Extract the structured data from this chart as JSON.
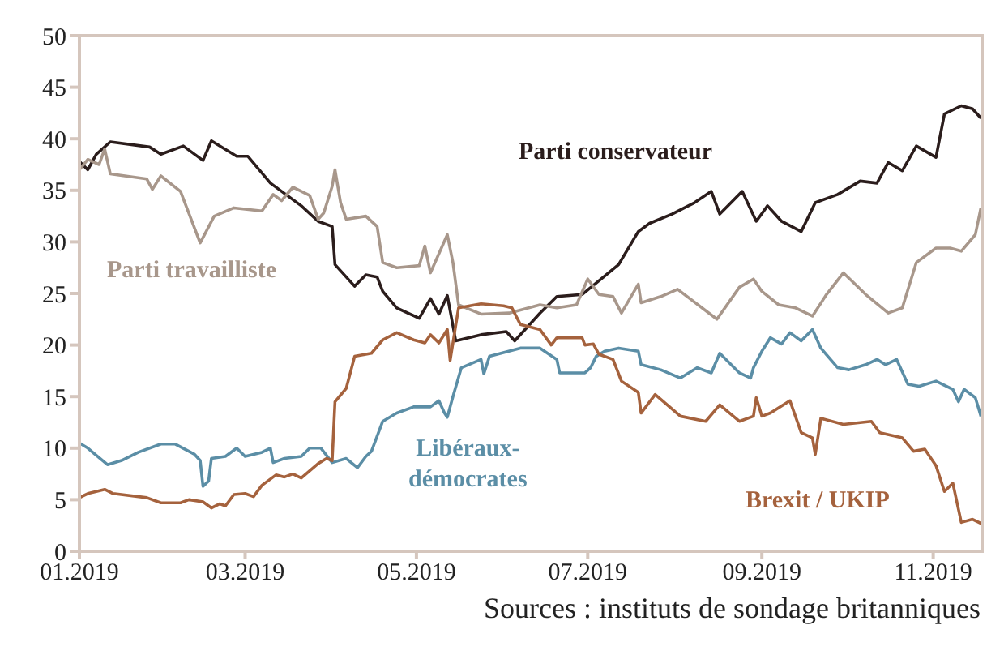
{
  "chart_data": {
    "type": "line",
    "annotations": [
      "Sources : instituts de sondage britanniques"
    ],
    "xlim": [
      "2019-01-01",
      "2019-11-19"
    ],
    "xticks": [
      {
        "value": "2019-01-01",
        "label": "01.2019"
      },
      {
        "value": "2019-03-01",
        "label": "03.2019"
      },
      {
        "value": "2019-05-01",
        "label": "05.2019"
      },
      {
        "value": "2019-07-01",
        "label": "07.2019"
      },
      {
        "value": "2019-09-01",
        "label": "09.2019"
      },
      {
        "value": "2019-11-01",
        "label": "11.2019"
      }
    ],
    "ylim": [
      0,
      50
    ],
    "yticks": [
      0,
      5,
      10,
      15,
      20,
      25,
      30,
      35,
      40,
      45,
      50
    ],
    "grid": false,
    "legend": false,
    "marker": "none",
    "line_style": "solid",
    "series": [
      {
        "name": "Parti conservateur",
        "color": "#2b1d1c",
        "x": [
          "2019-01-01",
          "2019-01-04",
          "2019-01-07",
          "2019-01-12",
          "2019-01-26",
          "2019-01-30",
          "2019-02-07",
          "2019-02-14",
          "2019-02-17",
          "2019-02-26",
          "2019-03-02",
          "2019-03-10",
          "2019-03-21",
          "2019-03-27",
          "2019-04-01",
          "2019-04-02",
          "2019-04-09",
          "2019-04-13",
          "2019-04-17",
          "2019-04-19",
          "2019-04-24",
          "2019-05-02",
          "2019-05-06",
          "2019-05-09",
          "2019-05-12",
          "2019-05-15",
          "2019-05-24",
          "2019-06-02",
          "2019-06-05",
          "2019-06-14",
          "2019-06-20",
          "2019-06-29",
          "2019-07-12",
          "2019-07-19",
          "2019-07-23",
          "2019-07-31",
          "2019-08-08",
          "2019-08-14",
          "2019-08-17",
          "2019-08-25",
          "2019-08-30",
          "2019-09-03",
          "2019-09-08",
          "2019-09-15",
          "2019-09-20",
          "2019-09-28",
          "2019-10-06",
          "2019-10-12",
          "2019-10-16",
          "2019-10-21",
          "2019-10-26",
          "2019-11-02",
          "2019-11-05",
          "2019-11-11",
          "2019-11-15",
          "2019-11-18"
        ],
        "values": [
          37.8,
          37,
          38.5,
          39.7,
          39.2,
          38.5,
          39.3,
          37.9,
          39.8,
          38.3,
          38.3,
          35.7,
          33.5,
          32,
          31.5,
          27.8,
          25.7,
          26.8,
          26.6,
          25.2,
          23.6,
          22.6,
          24.5,
          23,
          24.8,
          20.4,
          21,
          21.3,
          20.4,
          23.1,
          24.7,
          24.9,
          27.8,
          31,
          31.8,
          32.7,
          33.8,
          34.9,
          32.7,
          34.9,
          32,
          33.5,
          32,
          31,
          33.8,
          34.6,
          35.9,
          35.7,
          37.7,
          36.9,
          39.3,
          38.2,
          42.4,
          43.2,
          42.9,
          42
        ]
      },
      {
        "name": "Parti travailliste",
        "color": "#a8978b",
        "x": [
          "2019-01-01",
          "2019-01-04",
          "2019-01-08",
          "2019-01-10",
          "2019-01-12",
          "2019-01-25",
          "2019-01-27",
          "2019-01-30",
          "2019-02-06",
          "2019-02-13",
          "2019-02-18",
          "2019-02-25",
          "2019-03-07",
          "2019-03-11",
          "2019-03-14",
          "2019-03-18",
          "2019-03-24",
          "2019-03-27",
          "2019-03-29",
          "2019-04-01",
          "2019-04-02",
          "2019-04-04",
          "2019-04-06",
          "2019-04-13",
          "2019-04-17",
          "2019-04-19",
          "2019-04-24",
          "2019-05-02",
          "2019-05-04",
          "2019-05-06",
          "2019-05-12",
          "2019-05-14",
          "2019-05-16",
          "2019-05-24",
          "2019-06-03",
          "2019-06-14",
          "2019-06-20",
          "2019-06-27",
          "2019-07-01",
          "2019-07-05",
          "2019-07-10",
          "2019-07-13",
          "2019-07-19",
          "2019-07-20",
          "2019-07-27",
          "2019-08-02",
          "2019-08-16",
          "2019-08-24",
          "2019-08-29",
          "2019-09-01",
          "2019-09-07",
          "2019-09-13",
          "2019-09-19",
          "2019-09-24",
          "2019-09-30",
          "2019-10-08",
          "2019-10-16",
          "2019-10-21",
          "2019-10-26",
          "2019-11-02",
          "2019-11-07",
          "2019-11-11",
          "2019-11-16",
          "2019-11-18"
        ],
        "values": [
          37,
          38,
          37.5,
          39,
          36.6,
          36.1,
          35.1,
          36.4,
          34.9,
          29.9,
          32.5,
          33.3,
          33,
          34.6,
          34,
          35.3,
          34.5,
          32.2,
          32.8,
          35.4,
          37,
          33.8,
          32.2,
          32.5,
          31.5,
          28,
          27.5,
          27.7,
          29.6,
          27,
          30.7,
          28,
          23.9,
          23,
          23.1,
          23.9,
          23.6,
          23.9,
          26.4,
          24.9,
          24.7,
          23.1,
          25.9,
          24.1,
          24.7,
          25.4,
          22.5,
          25.6,
          26.4,
          25.2,
          23.9,
          23.6,
          22.8,
          24.9,
          27,
          24.9,
          23.1,
          23.6,
          28,
          29.4,
          29.4,
          29.1,
          30.7,
          33.3
        ]
      },
      {
        "name": "Libéraux-démocrates",
        "color": "#5b8ea6",
        "x": [
          "2019-01-01",
          "2019-01-04",
          "2019-01-07",
          "2019-01-11",
          "2019-01-16",
          "2019-01-22",
          "2019-01-30",
          "2019-02-04",
          "2019-02-11",
          "2019-02-13",
          "2019-02-14",
          "2019-02-16",
          "2019-02-17",
          "2019-02-22",
          "2019-02-26",
          "2019-03-01",
          "2019-03-07",
          "2019-03-10",
          "2019-03-11",
          "2019-03-15",
          "2019-03-21",
          "2019-03-24",
          "2019-03-28",
          "2019-04-01",
          "2019-04-06",
          "2019-04-10",
          "2019-04-13",
          "2019-04-15",
          "2019-04-19",
          "2019-04-24",
          "2019-04-30",
          "2019-05-06",
          "2019-05-09",
          "2019-05-11",
          "2019-05-12",
          "2019-05-14",
          "2019-05-17",
          "2019-05-24",
          "2019-05-25",
          "2019-05-27",
          "2019-06-07",
          "2019-06-14",
          "2019-06-20",
          "2019-06-21",
          "2019-06-30",
          "2019-07-02",
          "2019-07-04",
          "2019-07-07",
          "2019-07-12",
          "2019-07-19",
          "2019-07-20",
          "2019-07-27",
          "2019-08-03",
          "2019-08-09",
          "2019-08-14",
          "2019-08-17",
          "2019-08-24",
          "2019-08-28",
          "2019-08-29",
          "2019-09-01",
          "2019-09-04",
          "2019-09-08",
          "2019-09-11",
          "2019-09-15",
          "2019-09-19",
          "2019-09-22",
          "2019-09-28",
          "2019-10-02",
          "2019-10-08",
          "2019-10-12",
          "2019-10-15",
          "2019-10-19",
          "2019-10-23",
          "2019-10-27",
          "2019-11-02",
          "2019-11-08",
          "2019-11-10",
          "2019-11-12",
          "2019-11-16",
          "2019-11-18"
        ],
        "values": [
          10.5,
          10,
          9.3,
          8.4,
          8.8,
          9.6,
          10.4,
          10.4,
          9.4,
          8.8,
          6.3,
          6.8,
          9,
          9.2,
          10,
          9.2,
          9.6,
          10,
          8.6,
          9,
          9.2,
          10,
          10,
          8.6,
          9,
          8.1,
          9.2,
          9.7,
          12.6,
          13.4,
          14,
          14,
          14.6,
          13.4,
          13,
          15,
          17.8,
          18.6,
          17.2,
          18.9,
          19.7,
          19.7,
          18.6,
          17.3,
          17.3,
          17.8,
          18.9,
          19.4,
          19.7,
          19.4,
          18.1,
          17.6,
          16.8,
          17.8,
          17.3,
          19.2,
          17.3,
          16.8,
          17.8,
          19.4,
          20.7,
          20.1,
          21.2,
          20.4,
          21.5,
          19.7,
          17.8,
          17.6,
          18.1,
          18.6,
          18.1,
          18.6,
          16.2,
          16,
          16.5,
          15.7,
          14.5,
          15.7,
          14.9,
          13.1
        ]
      },
      {
        "name": "Brexit / UKIP",
        "color": "#a5623d",
        "x": [
          "2019-01-01",
          "2019-01-04",
          "2019-01-10",
          "2019-01-13",
          "2019-01-25",
          "2019-01-30",
          "2019-02-06",
          "2019-02-09",
          "2019-02-14",
          "2019-02-17",
          "2019-02-20",
          "2019-02-22",
          "2019-02-25",
          "2019-03-01",
          "2019-03-04",
          "2019-03-07",
          "2019-03-12",
          "2019-03-15",
          "2019-03-18",
          "2019-03-21",
          "2019-03-27",
          "2019-03-30",
          "2019-04-01",
          "2019-04-02",
          "2019-04-06",
          "2019-04-09",
          "2019-04-15",
          "2019-04-19",
          "2019-04-24",
          "2019-04-30",
          "2019-05-04",
          "2019-05-06",
          "2019-05-09",
          "2019-05-12",
          "2019-05-13",
          "2019-05-16",
          "2019-05-24",
          "2019-06-01",
          "2019-06-04",
          "2019-06-07",
          "2019-06-14",
          "2019-06-18",
          "2019-06-20",
          "2019-06-29",
          "2019-06-30",
          "2019-07-03",
          "2019-07-05",
          "2019-07-10",
          "2019-07-13",
          "2019-07-19",
          "2019-07-20",
          "2019-07-25",
          "2019-08-03",
          "2019-08-12",
          "2019-08-17",
          "2019-08-24",
          "2019-08-29",
          "2019-08-30",
          "2019-09-01",
          "2019-09-04",
          "2019-09-11",
          "2019-09-15",
          "2019-09-19",
          "2019-09-20",
          "2019-09-22",
          "2019-09-30",
          "2019-10-10",
          "2019-10-13",
          "2019-10-21",
          "2019-10-25",
          "2019-10-29",
          "2019-11-02",
          "2019-11-05",
          "2019-11-08",
          "2019-11-11",
          "2019-11-15",
          "2019-11-18"
        ],
        "values": [
          5.2,
          5.6,
          6,
          5.6,
          5.2,
          4.7,
          4.7,
          5,
          4.8,
          4.2,
          4.6,
          4.4,
          5.5,
          5.6,
          5.3,
          6.4,
          7.4,
          7.2,
          7.5,
          7.1,
          8.5,
          9,
          8.8,
          14.5,
          15.8,
          18.9,
          19.2,
          20.5,
          21.2,
          20.5,
          20.2,
          21,
          20.2,
          21.5,
          18.5,
          23.6,
          24,
          23.8,
          23.6,
          22,
          21.5,
          20,
          20.7,
          20.7,
          20,
          20.1,
          19.1,
          18.6,
          16.5,
          15.4,
          13.4,
          15.2,
          13.1,
          12.6,
          14.2,
          12.6,
          13.1,
          14.9,
          13.1,
          13.4,
          14.6,
          11.5,
          11,
          9.4,
          12.9,
          12.3,
          12.6,
          11.5,
          11,
          9.7,
          9.9,
          8.3,
          5.8,
          6.6,
          2.8,
          3.1,
          2.7
        ]
      }
    ]
  }
}
